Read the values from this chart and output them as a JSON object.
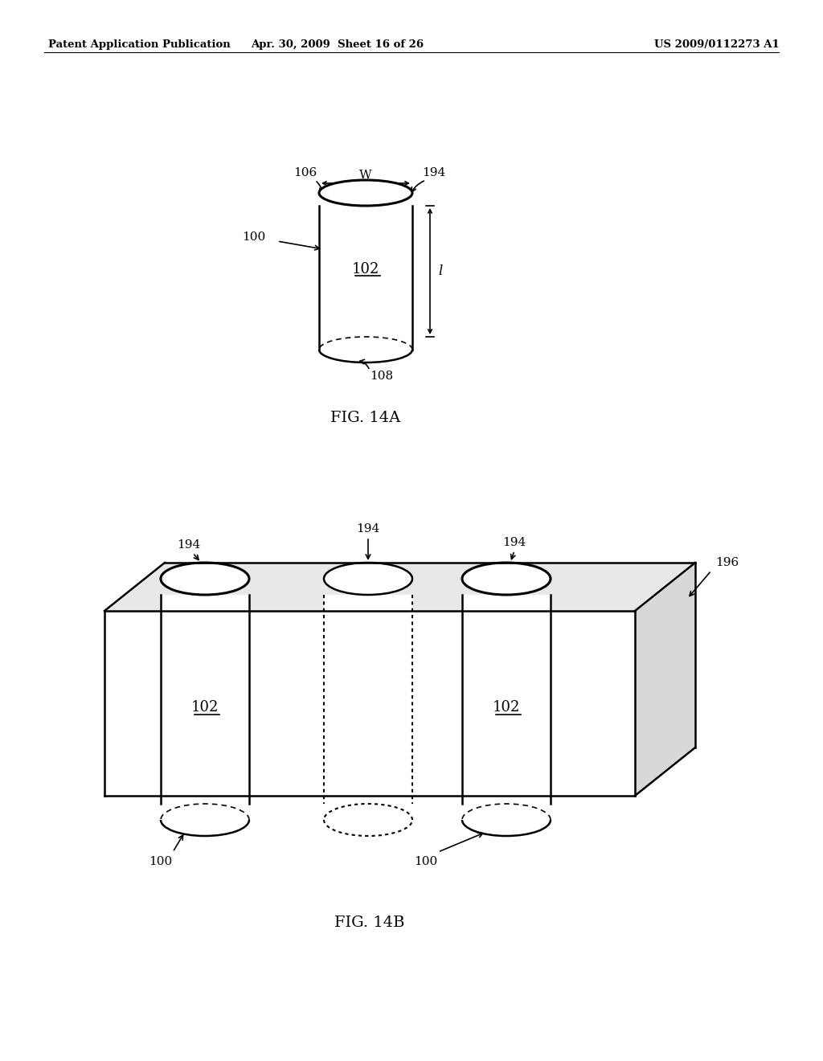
{
  "bg_color": "#ffffff",
  "header_left": "Patent Application Publication",
  "header_center": "Apr. 30, 2009  Sheet 16 of 26",
  "header_right": "US 2009/0112273 A1",
  "fig14a_caption": "FIG. 14A",
  "fig14b_caption": "FIG. 14B",
  "label_100": "100",
  "label_102": "102",
  "label_106": "106",
  "label_108": "108",
  "label_194": "194",
  "label_196": "196",
  "label_W": "W",
  "label_l": "l"
}
